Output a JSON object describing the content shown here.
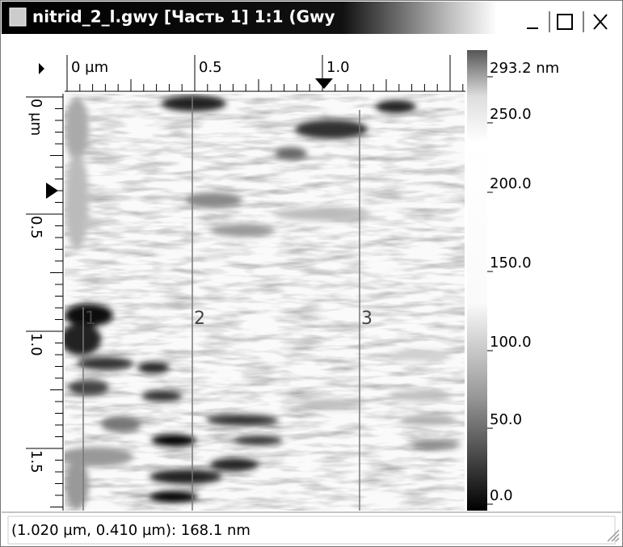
{
  "window": {
    "title": "nitrid_2_l.gwy [Часть 1] 1:1 (Gwy"
  },
  "rulers": {
    "top": [
      "0 µm",
      "0.5",
      "1.0"
    ],
    "left": [
      "0 µm",
      "0.5",
      "1.0",
      "1.5"
    ]
  },
  "profiles": [
    "1",
    "2",
    "3"
  ],
  "color_scale": [
    "293.2 nm",
    "250.0",
    "200.0",
    "150.0",
    "100.0",
    "50.0",
    "0.0"
  ],
  "status_bar": "(1.020 µm, 0.410 µm): 168.1 nm"
}
